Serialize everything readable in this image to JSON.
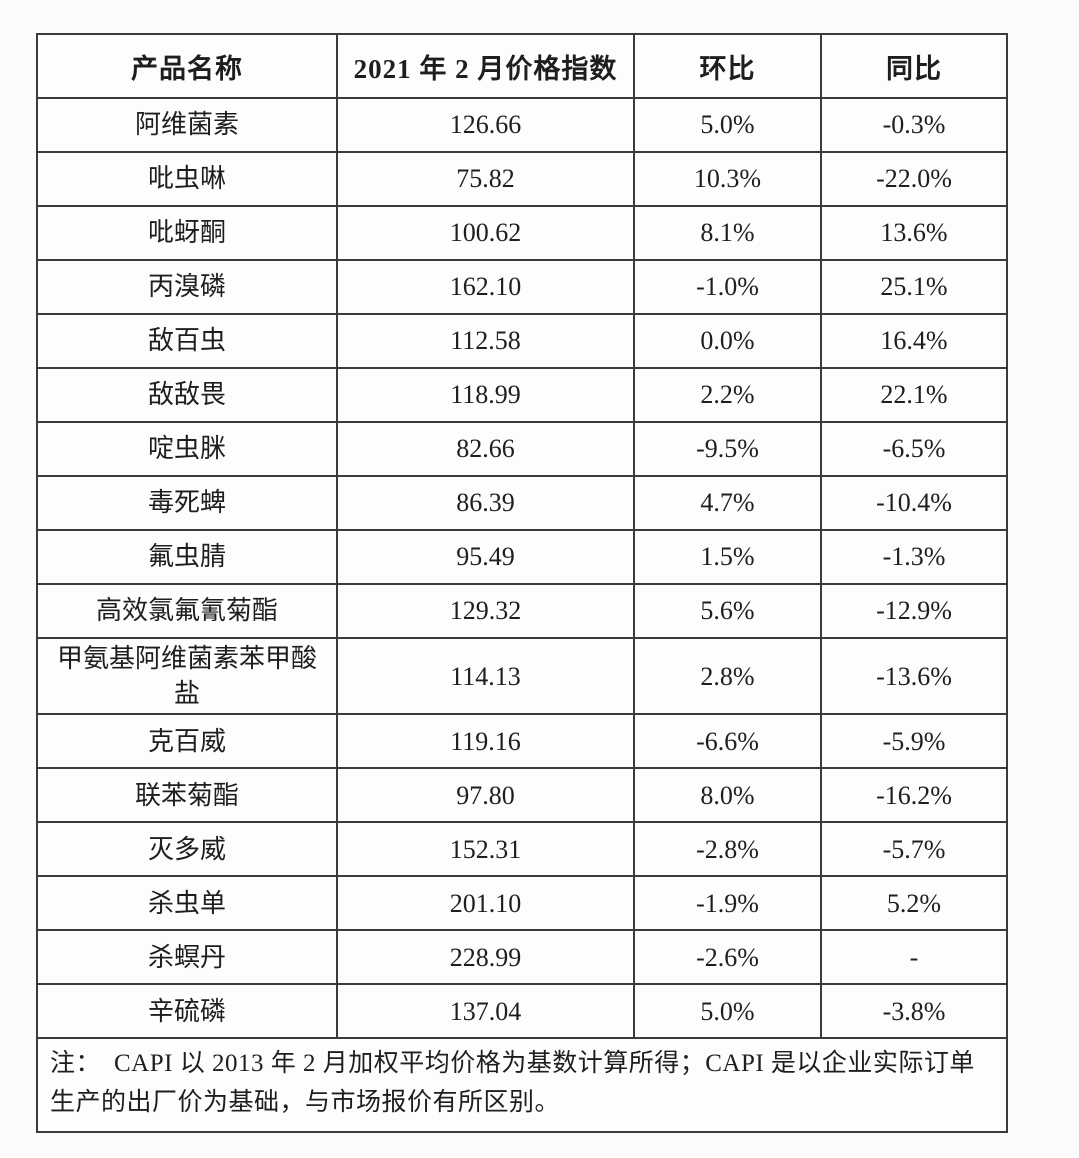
{
  "colors": {
    "border": "#3b3b3b",
    "text": "#1e1e1e",
    "background": "#fbfbfb"
  },
  "table": {
    "headers": [
      "产品名称",
      "2021 年 2 月价格指数",
      "环比",
      "同比"
    ],
    "rows": [
      {
        "name": "阿维菌素",
        "index": "126.66",
        "mom": "5.0%",
        "yoy": "-0.3%"
      },
      {
        "name": "吡虫啉",
        "index": "75.82",
        "mom": "10.3%",
        "yoy": "-22.0%"
      },
      {
        "name": "吡蚜酮",
        "index": "100.62",
        "mom": "8.1%",
        "yoy": "13.6%"
      },
      {
        "name": "丙溴磷",
        "index": "162.10",
        "mom": "-1.0%",
        "yoy": "25.1%"
      },
      {
        "name": "敌百虫",
        "index": "112.58",
        "mom": "0.0%",
        "yoy": "16.4%"
      },
      {
        "name": "敌敌畏",
        "index": "118.99",
        "mom": "2.2%",
        "yoy": "22.1%"
      },
      {
        "name": "啶虫脒",
        "index": "82.66",
        "mom": "-9.5%",
        "yoy": "-6.5%"
      },
      {
        "name": "毒死蜱",
        "index": "86.39",
        "mom": "4.7%",
        "yoy": "-10.4%"
      },
      {
        "name": "氟虫腈",
        "index": "95.49",
        "mom": "1.5%",
        "yoy": "-1.3%"
      },
      {
        "name": "高效氯氟氰菊酯",
        "index": "129.32",
        "mom": "5.6%",
        "yoy": "-12.9%"
      },
      {
        "name": "甲氨基阿维菌素苯甲酸盐",
        "index": "114.13",
        "mom": "2.8%",
        "yoy": "-13.6%"
      },
      {
        "name": "克百威",
        "index": "119.16",
        "mom": "-6.6%",
        "yoy": "-5.9%"
      },
      {
        "name": "联苯菊酯",
        "index": "97.80",
        "mom": "8.0%",
        "yoy": "-16.2%"
      },
      {
        "name": "灭多威",
        "index": "152.31",
        "mom": "-2.8%",
        "yoy": "-5.7%"
      },
      {
        "name": "杀虫单",
        "index": "201.10",
        "mom": "-1.9%",
        "yoy": "5.2%"
      },
      {
        "name": "杀螟丹",
        "index": "228.99",
        "mom": "-2.6%",
        "yoy": "-"
      },
      {
        "name": "辛硫磷",
        "index": "137.04",
        "mom": "5.0%",
        "yoy": "-3.8%"
      }
    ],
    "note": "注：　CAPI 以 2013 年 2 月加权平均价格为基数计算所得；CAPI 是以企业实际订单生产的出厂价为基础，与市场报价有所区别。"
  },
  "chart_data": {
    "type": "table",
    "title": "",
    "columns": [
      "产品名称",
      "2021 年 2 月价格指数",
      "环比",
      "同比"
    ],
    "rows": [
      [
        "阿维菌素",
        "126.66",
        "5.0%",
        "-0.3%"
      ],
      [
        "吡虫啉",
        "75.82",
        "10.3%",
        "-22.0%"
      ],
      [
        "吡蚜酮",
        "100.62",
        "8.1%",
        "13.6%"
      ],
      [
        "丙溴磷",
        "162.10",
        "-1.0%",
        "25.1%"
      ],
      [
        "敌百虫",
        "112.58",
        "0.0%",
        "16.4%"
      ],
      [
        "敌敌畏",
        "118.99",
        "2.2%",
        "22.1%"
      ],
      [
        "啶虫脒",
        "82.66",
        "-9.5%",
        "-6.5%"
      ],
      [
        "毒死蜱",
        "86.39",
        "4.7%",
        "-10.4%"
      ],
      [
        "氟虫腈",
        "95.49",
        "1.5%",
        "-1.3%"
      ],
      [
        "高效氯氟氰菊酯",
        "129.32",
        "5.6%",
        "-12.9%"
      ],
      [
        "甲氨基阿维菌素苯甲酸盐",
        "114.13",
        "2.8%",
        "-13.6%"
      ],
      [
        "克百威",
        "119.16",
        "-6.6%",
        "-5.9%"
      ],
      [
        "联苯菊酯",
        "97.80",
        "8.0%",
        "-16.2%"
      ],
      [
        "灭多威",
        "152.31",
        "-2.8%",
        "-5.7%"
      ],
      [
        "杀虫单",
        "201.10",
        "-1.9%",
        "5.2%"
      ],
      [
        "杀螟丹",
        "228.99",
        "-2.6%",
        "-"
      ],
      [
        "辛硫磷",
        "137.04",
        "5.0%",
        "-3.8%"
      ]
    ],
    "note": "注：　CAPI 以 2013 年 2 月加权平均价格为基数计算所得；CAPI 是以企业实际订单生产的出厂价为基础，与市场报价有所区别。"
  }
}
